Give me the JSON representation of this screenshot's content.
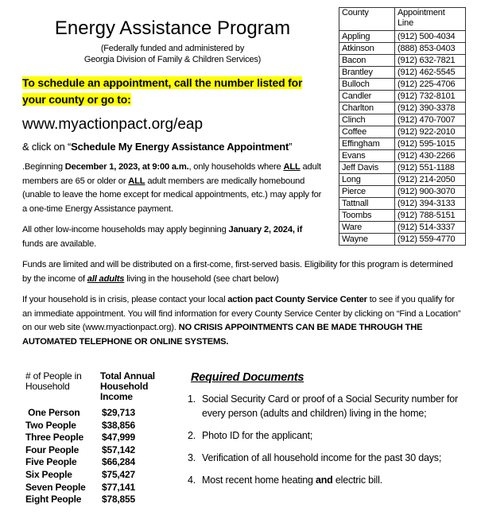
{
  "title": "Energy Assistance Program",
  "subtitle_lines": [
    "(Federally funded and administered by",
    "Georgia Division of Family & Children Services)"
  ],
  "highlight_lines": [
    "To schedule an appointment, call the number listed for",
    "your county or go to:"
  ],
  "url": "www.myactionpact.org/eap",
  "click": {
    "prefix": "& click on “",
    "bold": "Schedule My Energy Assistance Appointment",
    "suffix": "”"
  },
  "p1": {
    "a": ".Beginning ",
    "b": "December 1, 2023, at 9:00 a.m.",
    "c": ", only households where ",
    "d": "ALL",
    "e": " adult members are 65 or older or ",
    "f": "ALL",
    "g": " adult members are medically homebound (unable to leave the home except for medical appointments, etc.) may apply for a one-time Energy Assistance payment."
  },
  "p2": {
    "a": "All other low-income households may apply beginning ",
    "b": "January 2, 2024, if",
    "c": " funds are available."
  },
  "p3": {
    "a": "Funds are limited and will be distributed on a first-come, first-served basis.  Eligibility for this program is determined by the income of ",
    "b": "all adults",
    "c": " living in the household (see chart below)"
  },
  "p4": {
    "a": "If your household is in crisis, please contact your local ",
    "b": "action pact County Service Center",
    "c": " to see if you qualify for an immediate appointment.  You will find information for every County Service Center by clicking on “Find a Location” on our web site (www.myactionpact.org).  ",
    "d": "NO CRISIS APPOINTMENTS CAN BE MADE THROUGH THE AUTOMATED TELEPHONE OR ONLINE SYSTEMS."
  },
  "county_table": {
    "headers": [
      "County",
      "Appointment Line"
    ],
    "rows": [
      [
        "Appling",
        "(912) 500-4034"
      ],
      [
        "Atkinson",
        "(888) 853-0403"
      ],
      [
        "Bacon",
        "(912) 632-7821"
      ],
      [
        "Brantley",
        "(912) 462-5545"
      ],
      [
        "Bulloch",
        "(912) 225-4706"
      ],
      [
        "Candler",
        "(912) 732-8101"
      ],
      [
        "Charlton",
        "(912) 390-3378"
      ],
      [
        "Clinch",
        "(912) 470-7007"
      ],
      [
        "Coffee",
        "(912) 922-2010"
      ],
      [
        "Effingham",
        "(912) 595-1015"
      ],
      [
        "Evans",
        "(912) 430-2266"
      ],
      [
        "Jeff Davis",
        "(912) 551-1188"
      ],
      [
        "Long",
        "(912) 214-2050"
      ],
      [
        "Pierce",
        "(912) 900-3070"
      ],
      [
        "Tattnall",
        "(912) 394-3133"
      ],
      [
        "Toombs",
        "(912) 788-5151"
      ],
      [
        "Ware",
        "(912) 514-3337"
      ],
      [
        "Wayne",
        "(912) 559-4770"
      ]
    ]
  },
  "income_table": {
    "headers": [
      "# of People in Household",
      "Total Annual Household Income"
    ],
    "rows": [
      [
        " One Person",
        "$29,713"
      ],
      [
        "Two People",
        "$38,856"
      ],
      [
        "Three People",
        "$47,999"
      ],
      [
        "Four People",
        "$57,142"
      ],
      [
        "Five People",
        "$66,284"
      ],
      [
        "Six People",
        "$75,427"
      ],
      [
        "Seven People",
        "$77,141"
      ],
      [
        "Eight People",
        "$78,855"
      ]
    ]
  },
  "required": {
    "title": "Required Documents",
    "items": [
      {
        "n": "1.",
        "text": "Social Security Card or proof of a Social Security number for every person (adults and children) living in the home;"
      },
      {
        "n": "2.",
        "text": "Photo ID for the applicant;"
      },
      {
        "n": "3.",
        "text": "Verification of all household income for the past 30 days;"
      },
      {
        "n": "4.",
        "a": "Most recent home heating ",
        "b": "and",
        "c": " electric bill."
      }
    ]
  }
}
